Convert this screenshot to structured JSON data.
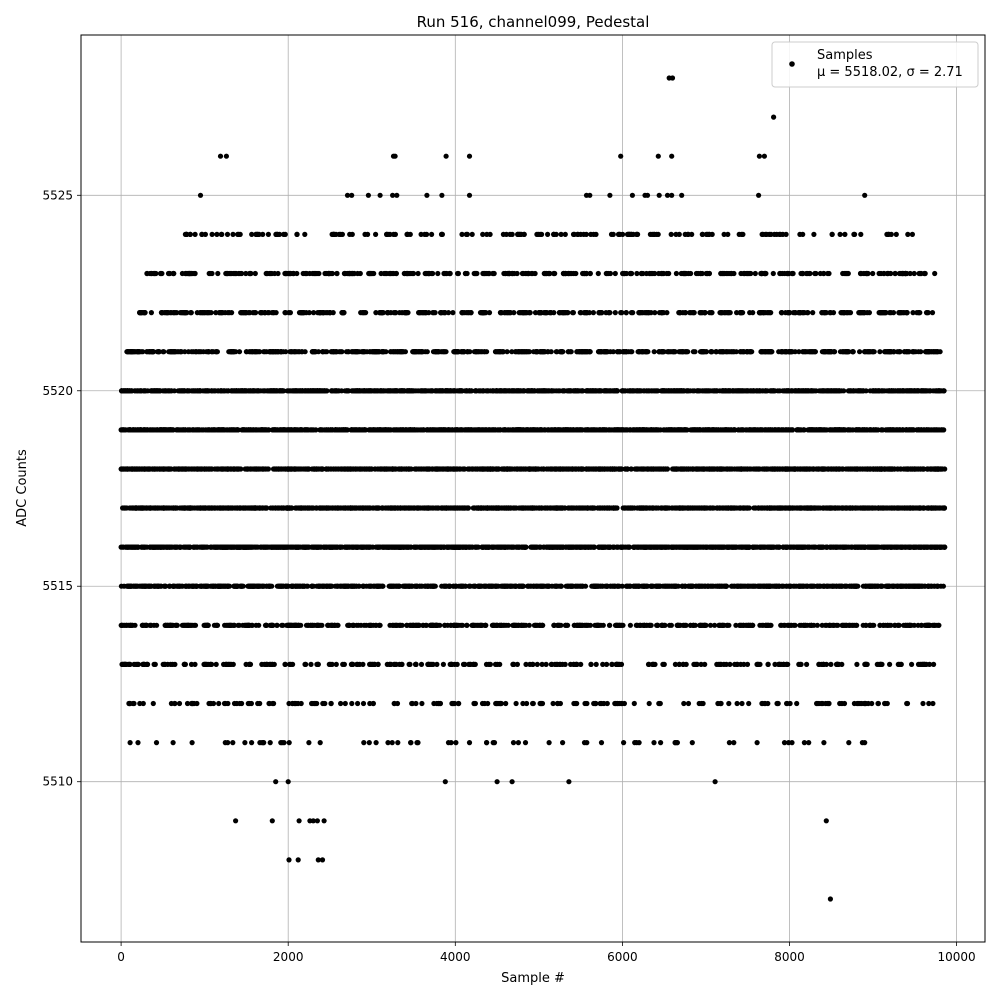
{
  "chart_data": {
    "type": "scatter",
    "title": "Run 516, channel099, Pedestal",
    "xlabel": "Sample #",
    "ylabel": "ADC Counts",
    "xlim": [
      -480,
      10340
    ],
    "ylim": [
      5505.9,
      5529.1
    ],
    "xticks": [
      0,
      2000,
      4000,
      6000,
      8000,
      10000
    ],
    "yticks": [
      5510,
      5515,
      5520,
      5525
    ],
    "grid": true,
    "marker_color": "#000000",
    "legend": {
      "placement": "top-right",
      "entry": "Samples",
      "stats": "μ = 5518.02, σ = 2.71"
    },
    "series": [
      {
        "name": "Samples",
        "points": [
          [
            1190,
            5526
          ],
          [
            1260,
            5526
          ],
          [
            3260,
            5526
          ],
          [
            3280,
            5526
          ],
          [
            3890,
            5526
          ],
          [
            4170,
            5526
          ],
          [
            5980,
            5526
          ],
          [
            6430,
            5526
          ],
          [
            6590,
            5526
          ],
          [
            7640,
            5526
          ],
          [
            7700,
            5526
          ],
          [
            6560,
            5528
          ],
          [
            6600,
            5528
          ],
          [
            7810,
            5527
          ],
          [
            950,
            5525
          ],
          [
            2710,
            5525
          ],
          [
            2760,
            5525
          ],
          [
            2960,
            5525
          ],
          [
            3100,
            5525
          ],
          [
            3250,
            5525
          ],
          [
            3300,
            5525
          ],
          [
            3660,
            5525
          ],
          [
            3840,
            5525
          ],
          [
            4170,
            5525
          ],
          [
            5570,
            5525
          ],
          [
            5610,
            5525
          ],
          [
            5850,
            5525
          ],
          [
            6120,
            5525
          ],
          [
            6270,
            5525
          ],
          [
            6300,
            5525
          ],
          [
            6440,
            5525
          ],
          [
            6540,
            5525
          ],
          [
            6590,
            5525
          ],
          [
            6710,
            5525
          ],
          [
            7630,
            5525
          ],
          [
            8900,
            5525
          ],
          [
            2130,
            5509
          ],
          [
            2260,
            5509
          ],
          [
            2300,
            5509
          ],
          [
            2350,
            5509
          ],
          [
            2430,
            5509
          ],
          [
            2010,
            5508
          ],
          [
            2120,
            5508
          ],
          [
            2360,
            5508
          ],
          [
            2410,
            5508
          ],
          [
            3880,
            5510
          ],
          [
            4500,
            5510
          ],
          [
            4680,
            5510
          ],
          [
            5360,
            5510
          ],
          [
            7110,
            5510
          ],
          [
            8440,
            5509
          ],
          [
            8490,
            5507
          ],
          [
            1370,
            5509
          ],
          [
            1810,
            5509
          ],
          [
            1850,
            5510
          ],
          [
            2000,
            5510
          ]
        ],
        "bands": [
          {
            "y": 5524,
            "x_min": 720,
            "x_max": 9620,
            "count": 180
          },
          {
            "y": 5523,
            "x_min": 300,
            "x_max": 9780,
            "count": 420
          },
          {
            "y": 5522,
            "x_min": 220,
            "x_max": 9780,
            "count": 480
          },
          {
            "y": 5521,
            "x_min": 60,
            "x_max": 9860,
            "count": 820
          },
          {
            "y": 5520,
            "x_min": 0,
            "x_max": 9860,
            "count": 1200
          },
          {
            "y": 5519,
            "x_min": 0,
            "x_max": 9860,
            "count": 1250
          },
          {
            "y": 5518,
            "x_min": 0,
            "x_max": 9860,
            "count": 1300
          },
          {
            "y": 5517,
            "x_min": 0,
            "x_max": 9860,
            "count": 1280
          },
          {
            "y": 5516,
            "x_min": 0,
            "x_max": 9860,
            "count": 1200
          },
          {
            "y": 5515,
            "x_min": 0,
            "x_max": 9860,
            "count": 980
          },
          {
            "y": 5514,
            "x_min": 0,
            "x_max": 9860,
            "count": 640
          },
          {
            "y": 5513,
            "x_min": 0,
            "x_max": 9780,
            "count": 300
          },
          {
            "y": 5512,
            "x_min": 60,
            "x_max": 9780,
            "count": 200
          },
          {
            "y": 5511,
            "x_min": 90,
            "x_max": 9060,
            "count": 70
          }
        ]
      }
    ]
  }
}
